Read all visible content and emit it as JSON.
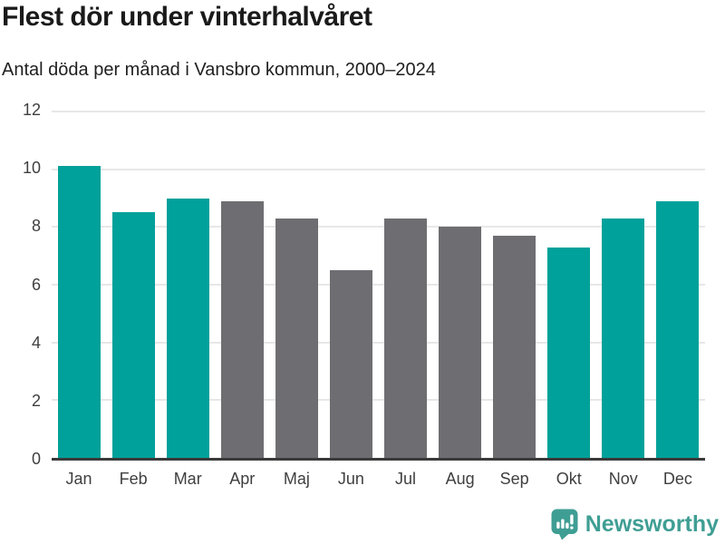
{
  "header": {
    "title": "Flest dör under vinterhalvåret",
    "subtitle": "Antal döda per månad i Vansbro kommun, 2000–2024"
  },
  "chart_data": {
    "type": "bar",
    "title": "Flest dör under vinterhalvåret",
    "subtitle": "Antal döda per månad i Vansbro kommun, 2000–2024",
    "categories": [
      "Jan",
      "Feb",
      "Mar",
      "Apr",
      "Maj",
      "Jun",
      "Jul",
      "Aug",
      "Sep",
      "Okt",
      "Nov",
      "Dec"
    ],
    "values": [
      10.1,
      8.5,
      9.0,
      8.9,
      8.3,
      6.5,
      8.3,
      8.0,
      7.7,
      7.3,
      8.3,
      8.9
    ],
    "bar_color_keys": [
      "teal",
      "teal",
      "teal",
      "gray",
      "gray",
      "gray",
      "gray",
      "gray",
      "gray",
      "teal",
      "teal",
      "teal"
    ],
    "palette": {
      "teal": "#00a19a",
      "gray": "#6e6e72"
    },
    "xlabel": "",
    "ylabel": "",
    "ylim": [
      0,
      12
    ],
    "yticks": [
      0,
      2,
      4,
      6,
      8,
      10,
      12
    ],
    "grid": "horizontal",
    "gridline_color": "#e7e7e7",
    "axis_line_color": "#3a3a3a",
    "legend": "none"
  },
  "footer": {
    "brand": "Newsworthy",
    "brand_color": "#3f9e94",
    "logo_icon": "bar-chart-speech-bubble-icon"
  }
}
